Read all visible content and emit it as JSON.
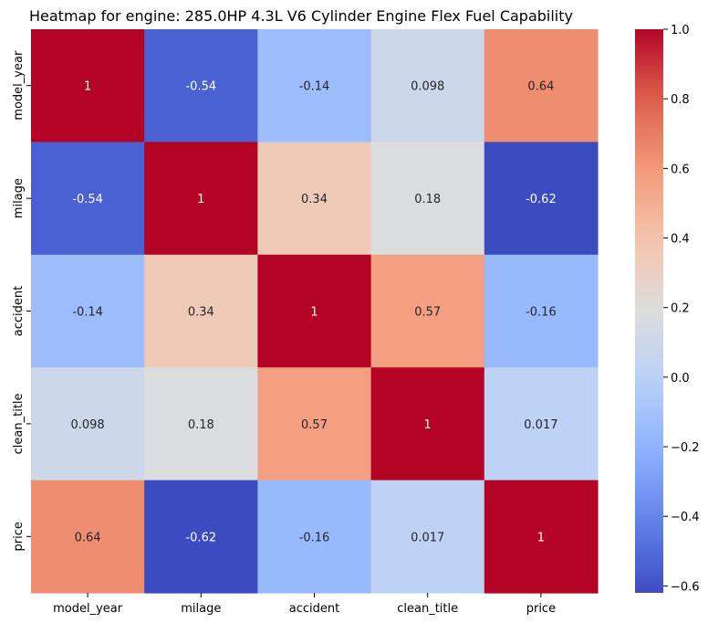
{
  "chart_data": {
    "type": "heatmap",
    "title": "Heatmap for engine: 285.0HP 4.3L V6 Cylinder Engine Flex Fuel Capability",
    "variables": [
      "model_year",
      "milage",
      "accident",
      "clean_title",
      "price"
    ],
    "matrix": [
      [
        1,
        -0.54,
        -0.14,
        0.098,
        0.64
      ],
      [
        -0.54,
        1,
        0.34,
        0.18,
        -0.62
      ],
      [
        -0.14,
        0.34,
        1,
        0.57,
        -0.16
      ],
      [
        0.098,
        0.18,
        0.57,
        1,
        0.017
      ],
      [
        0.64,
        -0.62,
        -0.16,
        0.017,
        1
      ]
    ],
    "cell_labels": [
      [
        "1",
        "-0.54",
        "-0.14",
        "0.098",
        "0.64"
      ],
      [
        "-0.54",
        "1",
        "0.34",
        "0.18",
        "-0.62"
      ],
      [
        "-0.14",
        "0.34",
        "1",
        "0.57",
        "-0.16"
      ],
      [
        "0.098",
        "0.18",
        "0.57",
        "1",
        "0.017"
      ],
      [
        "0.64",
        "-0.62",
        "-0.16",
        "0.017",
        "1"
      ]
    ],
    "colormap": "coolwarm",
    "colorbar": {
      "range": [
        -0.62,
        1.0
      ],
      "ticks": [
        1.0,
        0.8,
        0.6,
        0.4,
        0.2,
        0.0,
        -0.2,
        -0.4,
        -0.6
      ],
      "tick_labels": [
        "1.0",
        "0.8",
        "0.6",
        "0.4",
        "0.2",
        "0.0",
        "−0.2",
        "−0.4",
        "−0.6"
      ]
    }
  }
}
